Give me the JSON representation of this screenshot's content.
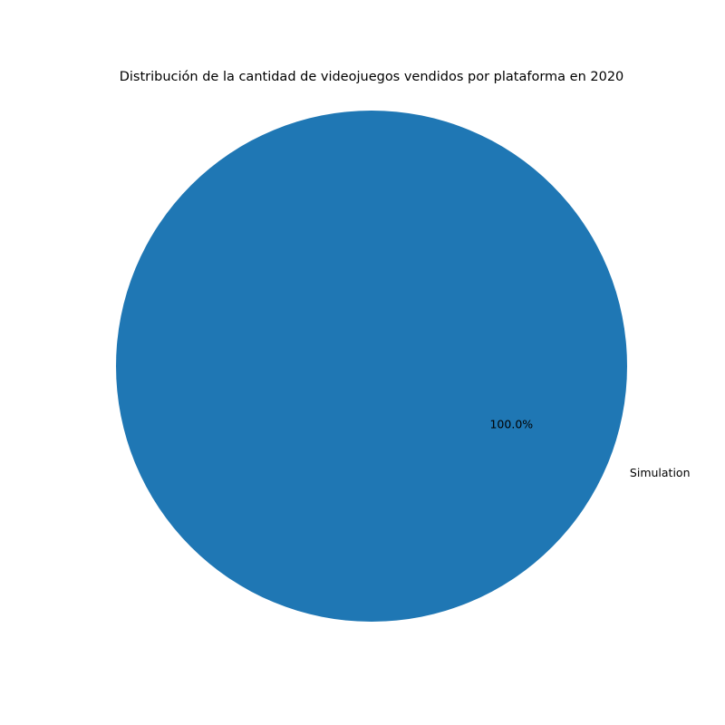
{
  "chart_data": {
    "type": "pie",
    "title": "Distribución de la cantidad de videojuegos vendidos por plataforma en 2020",
    "labels": [
      "Simulation"
    ],
    "values": [
      100.0
    ],
    "percent_labels": [
      "100.0%"
    ],
    "colors": [
      "#1f77b4"
    ],
    "legend": false
  }
}
